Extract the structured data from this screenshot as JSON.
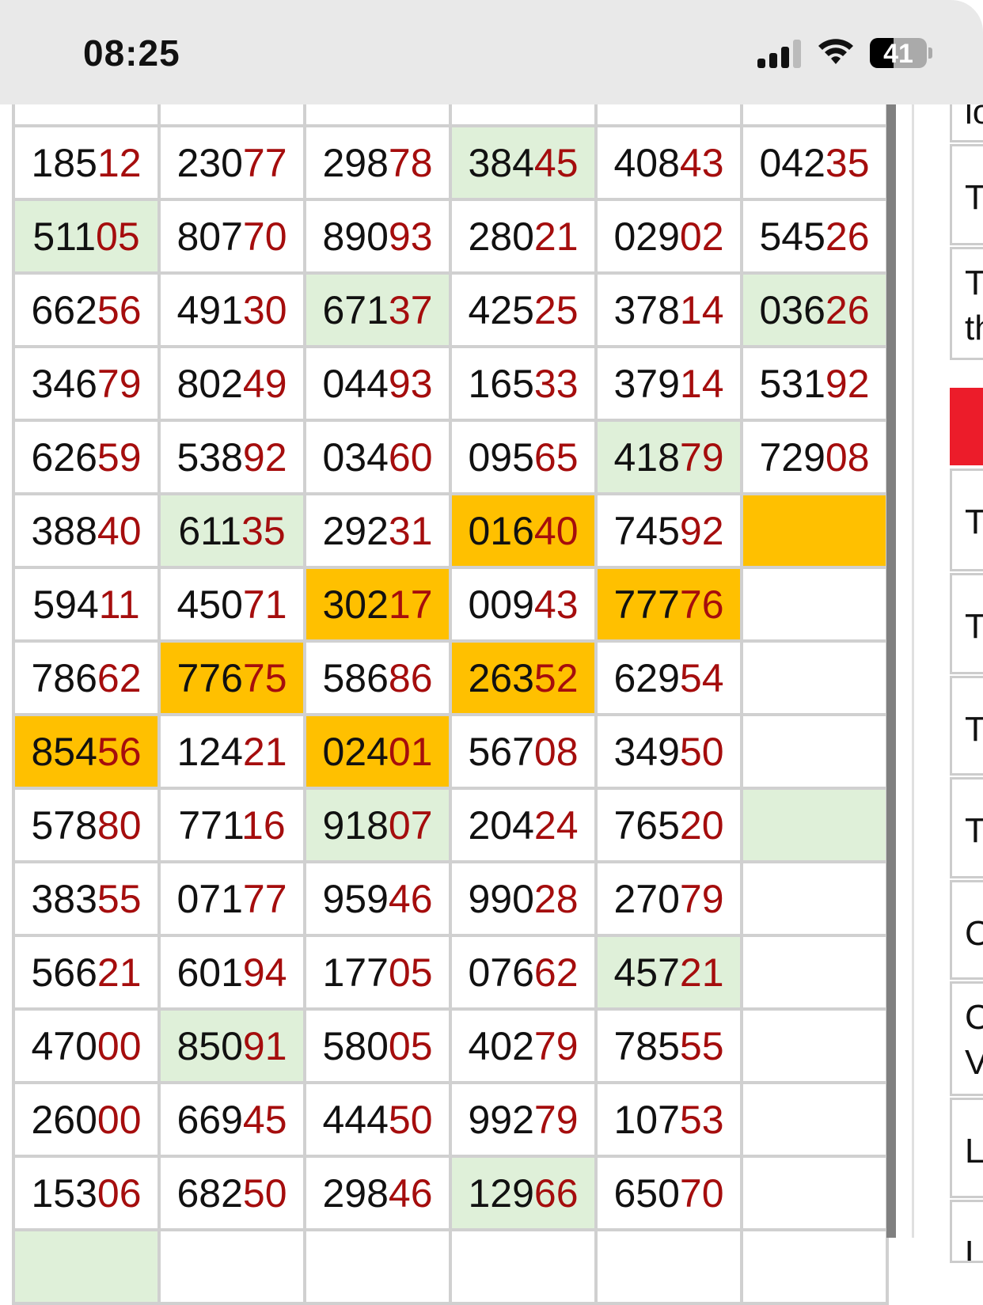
{
  "status_bar": {
    "time": "08:25",
    "battery": "41",
    "battery_level": 0.41
  },
  "colors": {
    "highlight_green": "#dff0d9",
    "highlight_orange": "#ffc000",
    "suffix_red": "#a50d0d",
    "side_red": "#ec1c2a"
  },
  "grid": {
    "rows": [
      [
        [
          "18512",
          ""
        ],
        [
          "23077",
          ""
        ],
        [
          "29878",
          ""
        ],
        [
          "38445",
          "g"
        ],
        [
          "40843",
          ""
        ],
        [
          "04235",
          ""
        ]
      ],
      [
        [
          "51105",
          "g"
        ],
        [
          "80770",
          ""
        ],
        [
          "89093",
          ""
        ],
        [
          "28021",
          ""
        ],
        [
          "02902",
          ""
        ],
        [
          "54526",
          ""
        ]
      ],
      [
        [
          "66256",
          ""
        ],
        [
          "49130",
          ""
        ],
        [
          "67137",
          "g"
        ],
        [
          "42525",
          ""
        ],
        [
          "37814",
          ""
        ],
        [
          "03626",
          "g"
        ]
      ],
      [
        [
          "34679",
          ""
        ],
        [
          "80249",
          ""
        ],
        [
          "04493",
          ""
        ],
        [
          "16533",
          ""
        ],
        [
          "37914",
          ""
        ],
        [
          "53192",
          ""
        ]
      ],
      [
        [
          "62659",
          ""
        ],
        [
          "53892",
          ""
        ],
        [
          "03460",
          ""
        ],
        [
          "09565",
          ""
        ],
        [
          "41879",
          "g"
        ],
        [
          "72908",
          ""
        ]
      ],
      [
        [
          "38840",
          ""
        ],
        [
          "61135",
          "g"
        ],
        [
          "29231",
          ""
        ],
        [
          "01640",
          "o"
        ],
        [
          "74592",
          ""
        ],
        [
          "",
          "o"
        ]
      ],
      [
        [
          "59411",
          ""
        ],
        [
          "45071",
          ""
        ],
        [
          "30217",
          "o"
        ],
        [
          "00943",
          ""
        ],
        [
          "77776",
          "o"
        ],
        [
          "",
          ""
        ]
      ],
      [
        [
          "78662",
          ""
        ],
        [
          "77675",
          "o"
        ],
        [
          "58686",
          ""
        ],
        [
          "26352",
          "o"
        ],
        [
          "62954",
          ""
        ],
        [
          "",
          ""
        ]
      ],
      [
        [
          "85456",
          "o"
        ],
        [
          "12421",
          ""
        ],
        [
          "02401",
          "o"
        ],
        [
          "56708",
          ""
        ],
        [
          "34950",
          ""
        ],
        [
          "",
          ""
        ]
      ],
      [
        [
          "57880",
          ""
        ],
        [
          "77116",
          ""
        ],
        [
          "91807",
          "g"
        ],
        [
          "20424",
          ""
        ],
        [
          "76520",
          ""
        ],
        [
          "",
          "g"
        ]
      ],
      [
        [
          "38355",
          ""
        ],
        [
          "07177",
          ""
        ],
        [
          "95946",
          ""
        ],
        [
          "99028",
          ""
        ],
        [
          "27079",
          ""
        ],
        [
          "",
          ""
        ]
      ],
      [
        [
          "56621",
          ""
        ],
        [
          "60194",
          ""
        ],
        [
          "17705",
          ""
        ],
        [
          "07662",
          ""
        ],
        [
          "45721",
          "g"
        ],
        [
          "",
          ""
        ]
      ],
      [
        [
          "47000",
          ""
        ],
        [
          "85091",
          "g"
        ],
        [
          "58005",
          ""
        ],
        [
          "40279",
          ""
        ],
        [
          "78555",
          ""
        ],
        [
          "",
          ""
        ]
      ],
      [
        [
          "26000",
          ""
        ],
        [
          "66945",
          ""
        ],
        [
          "44450",
          ""
        ],
        [
          "99279",
          ""
        ],
        [
          "10753",
          ""
        ],
        [
          "",
          ""
        ]
      ],
      [
        [
          "15306",
          ""
        ],
        [
          "68250",
          ""
        ],
        [
          "29846",
          ""
        ],
        [
          "12966",
          "g"
        ],
        [
          "65070",
          ""
        ],
        [
          "",
          ""
        ]
      ]
    ]
  },
  "side_panel": {
    "items": [
      "lo",
      "T",
      "T\nth",
      "T",
      "T",
      "T",
      "T",
      "C",
      "C\nV",
      "L",
      "L"
    ]
  }
}
